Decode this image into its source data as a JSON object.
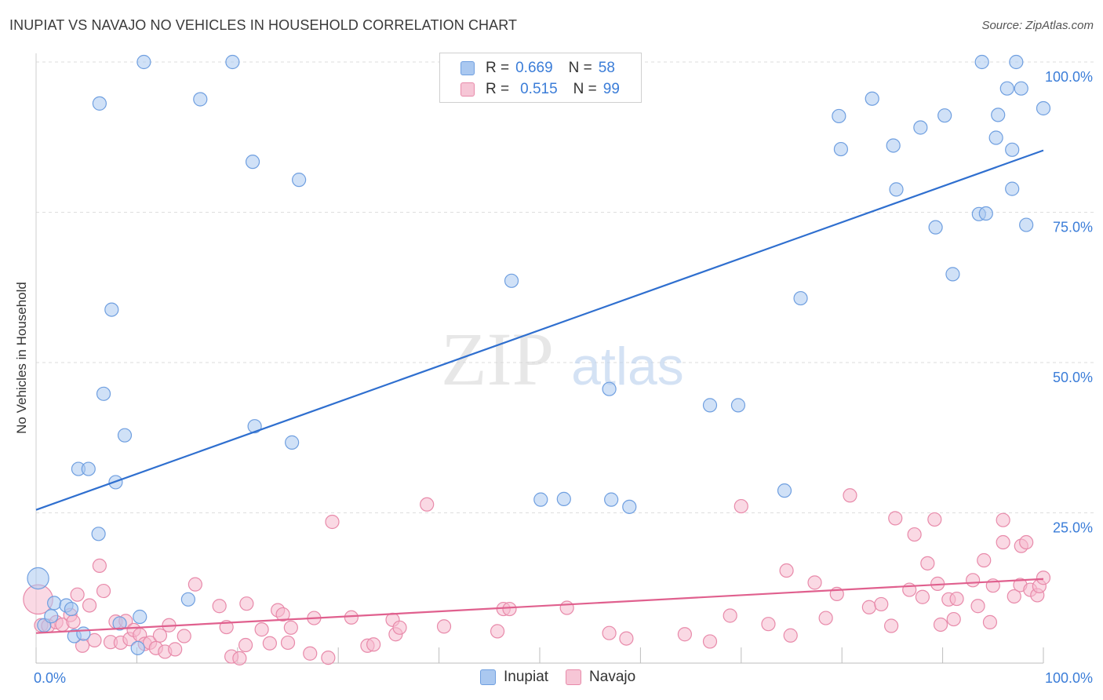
{
  "title": "INUPIAT VS NAVAJO NO VEHICLES IN HOUSEHOLD CORRELATION CHART",
  "source": "Source: ZipAtlas.com",
  "watermark": {
    "zip": "ZIP",
    "atlas": "atlas"
  },
  "legend": {
    "inupiat": {
      "r_label": "R =",
      "r_value": "0.669",
      "n_label": "N =",
      "n_value": "58"
    },
    "navajo": {
      "r_label": "R =",
      "r_value": "0.515",
      "n_label": "N =",
      "n_value": "99"
    }
  },
  "colors": {
    "inupiat_fill": "#aac8f0",
    "inupiat_stroke": "#6f9fe0",
    "inupiat_line": "#2f6fcf",
    "navajo_fill": "#f6b9cd",
    "navajo_stroke": "#e88aaa",
    "navajo_line": "#e0608e",
    "tick_text": "#3b7dd8"
  },
  "chart_data": {
    "type": "scatter",
    "title": "INUPIAT VS NAVAJO NO VEHICLES IN HOUSEHOLD CORRELATION CHART",
    "xlabel": "",
    "ylabel": "No Vehicles in Household",
    "xlim": [
      0,
      100
    ],
    "ylim": [
      0,
      100
    ],
    "x_tick_labels": [
      "0.0%",
      "100.0%"
    ],
    "y_tick_labels": [
      "100.0%",
      "75.0%",
      "50.0%",
      "25.0%"
    ],
    "y_ticks": [
      100,
      75,
      50,
      25
    ],
    "legend": [
      "Inupiat",
      "Navajo"
    ],
    "series": [
      {
        "name": "Inupiat",
        "trend": {
          "x": [
            0,
            100
          ],
          "y": [
            25.5,
            85.3
          ]
        },
        "points": [
          [
            0.2,
            14.1,
            1.6
          ],
          [
            0.8,
            6.3,
            1
          ],
          [
            1.5,
            7.8,
            1
          ],
          [
            1.8,
            10.0,
            1
          ],
          [
            3.0,
            9.6,
            1
          ],
          [
            3.5,
            9.0,
            1
          ],
          [
            3.8,
            4.5,
            1
          ],
          [
            4.7,
            4.9,
            1
          ],
          [
            8.3,
            6.6,
            1
          ],
          [
            10.1,
            2.5,
            1
          ],
          [
            10.3,
            7.7,
            1
          ],
          [
            6.2,
            21.5,
            1
          ],
          [
            4.2,
            32.3,
            1
          ],
          [
            5.2,
            32.3,
            1
          ],
          [
            7.9,
            30.1,
            1
          ],
          [
            6.7,
            44.8,
            1
          ],
          [
            8.8,
            37.9,
            1
          ],
          [
            7.5,
            58.8,
            1
          ],
          [
            6.3,
            93.1,
            1
          ],
          [
            10.7,
            100.0,
            1
          ],
          [
            16.3,
            93.8,
            1
          ],
          [
            19.5,
            100.0,
            1
          ],
          [
            21.5,
            83.4,
            1
          ],
          [
            26.1,
            80.4,
            1
          ],
          [
            15.1,
            10.6,
            1
          ],
          [
            21.7,
            39.4,
            1
          ],
          [
            25.4,
            36.7,
            1
          ],
          [
            47.2,
            63.6,
            1
          ],
          [
            50.1,
            27.2,
            1
          ],
          [
            52.4,
            27.3,
            1
          ],
          [
            56.9,
            45.6,
            1
          ],
          [
            57.1,
            27.2,
            1
          ],
          [
            58.9,
            26.0,
            1
          ],
          [
            66.9,
            42.9,
            1
          ],
          [
            69.7,
            42.9,
            1
          ],
          [
            74.3,
            28.7,
            1
          ],
          [
            75.9,
            60.7,
            1
          ],
          [
            79.7,
            91.0,
            1
          ],
          [
            79.9,
            85.5,
            1
          ],
          [
            83.0,
            93.9,
            1
          ],
          [
            85.1,
            86.1,
            1
          ],
          [
            85.4,
            78.8,
            1
          ],
          [
            87.8,
            89.1,
            1
          ],
          [
            89.3,
            72.5,
            1
          ],
          [
            90.2,
            91.1,
            1
          ],
          [
            91.0,
            64.7,
            1
          ],
          [
            93.6,
            74.7,
            1
          ],
          [
            94.3,
            74.8,
            1
          ],
          [
            93.9,
            100.0,
            1
          ],
          [
            95.3,
            87.4,
            1
          ],
          [
            95.5,
            91.2,
            1
          ],
          [
            96.4,
            95.6,
            1
          ],
          [
            96.9,
            85.4,
            1
          ],
          [
            96.9,
            78.9,
            1
          ],
          [
            97.3,
            100.0,
            1
          ],
          [
            97.8,
            95.6,
            1
          ],
          [
            98.3,
            72.9,
            1
          ],
          [
            100.0,
            92.3,
            1
          ]
        ]
      },
      {
        "name": "Navajo",
        "trend": {
          "x": [
            0,
            100
          ],
          "y": [
            5.0,
            14.0
          ]
        },
        "points": [
          [
            0.2,
            10.6,
            2.2
          ],
          [
            0.5,
            6.3,
            1
          ],
          [
            1.2,
            6.2,
            1
          ],
          [
            2.0,
            6.8,
            1
          ],
          [
            2.6,
            6.4,
            1
          ],
          [
            3.4,
            8.0,
            1
          ],
          [
            3.7,
            6.9,
            1
          ],
          [
            4.1,
            11.4,
            1
          ],
          [
            4.6,
            2.9,
            1
          ],
          [
            5.3,
            9.6,
            1
          ],
          [
            5.8,
            3.8,
            1
          ],
          [
            6.3,
            16.2,
            1
          ],
          [
            6.7,
            12.0,
            1
          ],
          [
            7.4,
            3.5,
            1
          ],
          [
            7.9,
            6.9,
            1
          ],
          [
            8.4,
            3.4,
            1
          ],
          [
            8.9,
            7.0,
            1
          ],
          [
            9.3,
            4.0,
            1
          ],
          [
            9.7,
            5.5,
            1
          ],
          [
            10.3,
            4.7,
            1
          ],
          [
            10.8,
            3.2,
            1
          ],
          [
            11.3,
            3.4,
            1
          ],
          [
            11.9,
            2.5,
            1
          ],
          [
            12.3,
            4.6,
            1
          ],
          [
            12.8,
            1.9,
            1
          ],
          [
            13.2,
            6.3,
            1
          ],
          [
            13.8,
            2.3,
            1
          ],
          [
            14.7,
            4.5,
            1
          ],
          [
            15.8,
            13.1,
            1
          ],
          [
            18.2,
            9.5,
            1
          ],
          [
            18.9,
            6.0,
            1
          ],
          [
            19.4,
            1.1,
            1
          ],
          [
            20.2,
            0.8,
            1
          ],
          [
            20.8,
            3.0,
            1
          ],
          [
            20.9,
            9.9,
            1
          ],
          [
            22.4,
            5.6,
            1
          ],
          [
            23.2,
            3.3,
            1
          ],
          [
            24.0,
            8.8,
            1
          ],
          [
            24.5,
            8.1,
            1
          ],
          [
            25.0,
            3.4,
            1
          ],
          [
            25.3,
            5.9,
            1
          ],
          [
            27.2,
            1.6,
            1
          ],
          [
            27.6,
            7.5,
            1
          ],
          [
            29.0,
            0.9,
            1
          ],
          [
            29.4,
            23.5,
            1
          ],
          [
            31.3,
            7.6,
            1
          ],
          [
            32.9,
            2.9,
            1
          ],
          [
            33.5,
            3.1,
            1
          ],
          [
            35.4,
            7.2,
            1
          ],
          [
            35.7,
            4.8,
            1
          ],
          [
            36.1,
            5.9,
            1
          ],
          [
            38.8,
            26.4,
            1
          ],
          [
            40.5,
            6.1,
            1
          ],
          [
            45.8,
            5.3,
            1
          ],
          [
            46.4,
            9.0,
            1
          ],
          [
            47.0,
            9.0,
            1
          ],
          [
            52.7,
            9.2,
            1
          ],
          [
            56.9,
            5.0,
            1
          ],
          [
            58.6,
            4.1,
            1
          ],
          [
            64.4,
            4.8,
            1
          ],
          [
            66.9,
            3.6,
            1
          ],
          [
            68.9,
            7.9,
            1
          ],
          [
            70.0,
            26.1,
            1
          ],
          [
            72.7,
            6.5,
            1
          ],
          [
            74.5,
            15.4,
            1
          ],
          [
            74.9,
            4.6,
            1
          ],
          [
            77.3,
            13.4,
            1
          ],
          [
            78.4,
            7.5,
            1
          ],
          [
            79.5,
            11.5,
            1
          ],
          [
            80.8,
            27.9,
            1
          ],
          [
            82.7,
            9.3,
            1
          ],
          [
            83.9,
            9.8,
            1
          ],
          [
            84.9,
            6.2,
            1
          ],
          [
            85.3,
            24.1,
            1
          ],
          [
            86.7,
            12.2,
            1
          ],
          [
            87.2,
            21.4,
            1
          ],
          [
            88.0,
            11.0,
            1
          ],
          [
            88.5,
            16.6,
            1
          ],
          [
            89.2,
            23.9,
            1
          ],
          [
            89.5,
            13.2,
            1
          ],
          [
            89.8,
            6.4,
            1
          ],
          [
            90.6,
            10.6,
            1
          ],
          [
            91.1,
            7.3,
            1
          ],
          [
            91.4,
            10.7,
            1
          ],
          [
            93.0,
            13.8,
            1
          ],
          [
            93.5,
            9.5,
            1
          ],
          [
            94.1,
            17.1,
            1
          ],
          [
            94.7,
            6.8,
            1
          ],
          [
            95.0,
            12.9,
            1
          ],
          [
            96.0,
            23.8,
            1
          ],
          [
            96.0,
            20.1,
            1
          ],
          [
            97.1,
            11.1,
            1
          ],
          [
            97.7,
            13.0,
            1
          ],
          [
            97.8,
            19.5,
            1
          ],
          [
            98.3,
            20.1,
            1
          ],
          [
            98.7,
            12.2,
            1
          ],
          [
            99.4,
            11.3,
            1
          ],
          [
            99.6,
            12.8,
            1
          ],
          [
            100.0,
            14.2,
            1
          ]
        ]
      }
    ]
  },
  "legend_bottom": {
    "inupiat": "Inupiat",
    "navajo": "Navajo"
  }
}
